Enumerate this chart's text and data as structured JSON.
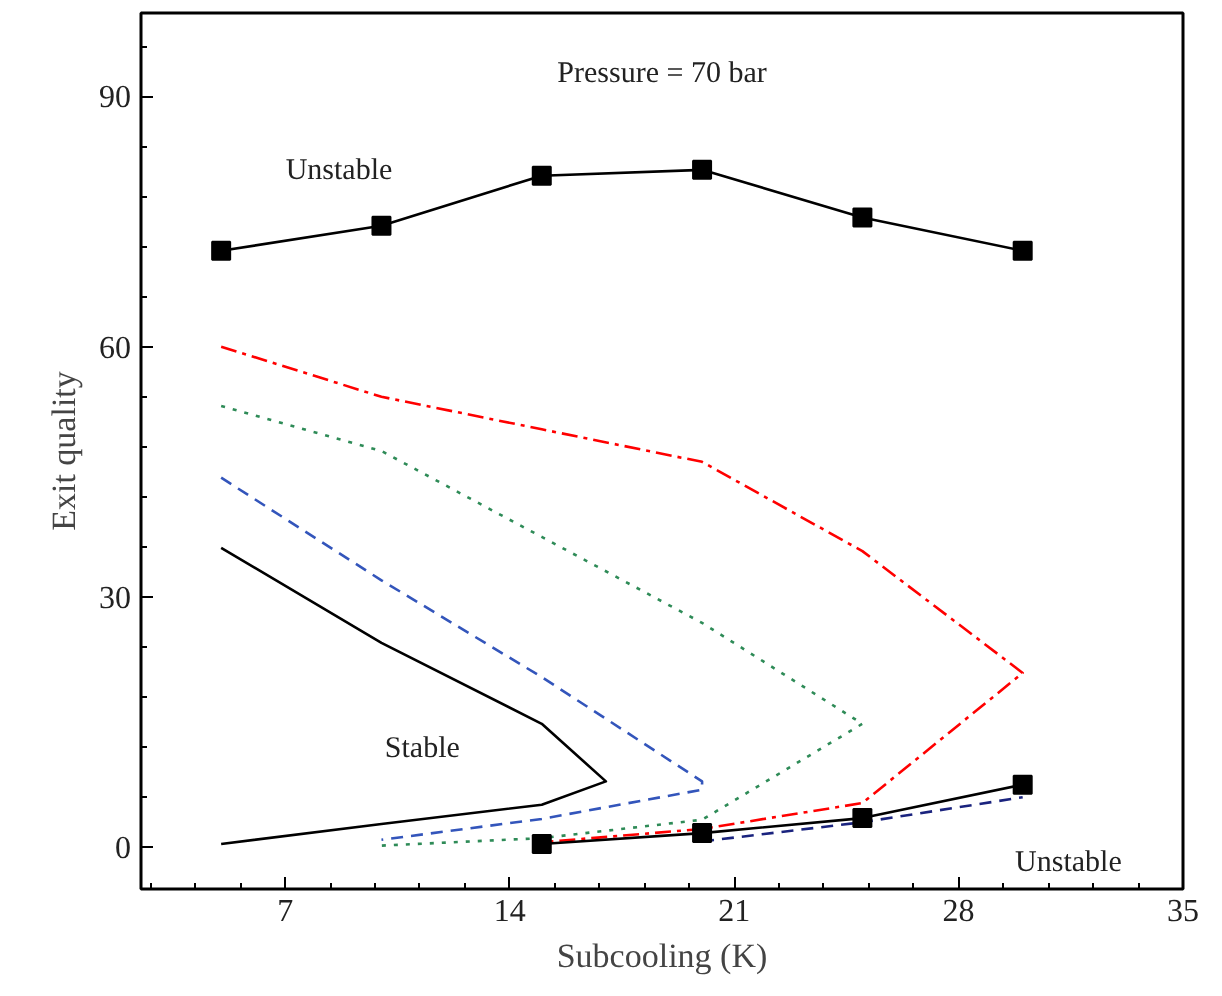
{
  "chart_data": {
    "type": "line",
    "xlabel": "Subcooling (K)",
    "ylabel": "Exit quality",
    "xlim": [
      2.5,
      35
    ],
    "ylim": [
      -5,
      100
    ],
    "xticks": [
      7,
      14,
      21,
      28,
      35
    ],
    "yticks": [
      0,
      30,
      60,
      90
    ],
    "grid": false,
    "annotations": [
      "Pressure = 70 bar",
      "Unstable",
      "Stable",
      "Unstable"
    ],
    "series": [
      {
        "color": "#000000",
        "line_style": "solid",
        "marker": "square",
        "x": [
          5,
          10,
          15,
          20,
          25,
          30
        ],
        "values": [
          71.5,
          74.5,
          80.5,
          81.2,
          75.5,
          71.5
        ]
      },
      {
        "color": "#ff0000",
        "line_style": "dashdot",
        "marker": "none",
        "x": [
          5,
          10,
          15,
          20,
          25,
          30,
          25,
          20,
          15
        ],
        "values": [
          60,
          54,
          50.1,
          46.2,
          35.5,
          20.9,
          5.3,
          2.2,
          0.6
        ]
      },
      {
        "color": "#2e8b57",
        "line_style": "dotted",
        "marker": "none",
        "x": [
          5,
          10,
          15,
          20,
          25,
          20,
          15,
          10
        ],
        "values": [
          52.9,
          47.5,
          37.2,
          26.9,
          14.8,
          3.3,
          1.1,
          0.2
        ]
      },
      {
        "color": "#3355bb",
        "line_style": "dashed",
        "marker": "none",
        "x": [
          5,
          10,
          15,
          20,
          20,
          15,
          10
        ],
        "values": [
          44.3,
          32,
          20.4,
          7.9,
          6.9,
          3.4,
          0.9
        ]
      },
      {
        "color": "#000000",
        "line_style": "solid",
        "marker": "none",
        "x": [
          5,
          10,
          15,
          17,
          15,
          10,
          5
        ],
        "values": [
          35.9,
          24.5,
          14.8,
          7.9,
          5.1,
          2.8,
          0.4
        ]
      },
      {
        "color": "#1a237e",
        "line_style": "dashed",
        "marker": "none",
        "x": [
          20,
          25,
          30
        ],
        "values": [
          0.7,
          3,
          6
        ]
      },
      {
        "color": "#000000",
        "line_style": "solid",
        "marker": "square",
        "x": [
          15,
          20,
          25,
          30
        ],
        "values": [
          0.4,
          1.7,
          3.5,
          7.5
        ]
      }
    ]
  }
}
